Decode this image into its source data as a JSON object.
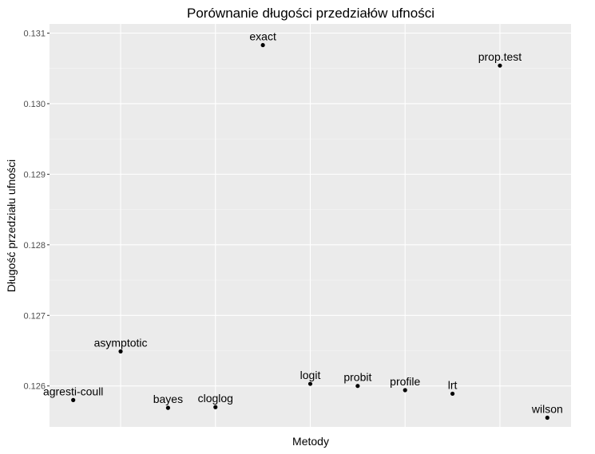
{
  "chart_data": {
    "type": "scatter",
    "title": "Porównanie długości przedziałów ufności",
    "xlabel": "Metody",
    "ylabel": "Długość przedziału ufności",
    "ylim": [
      0.12542,
      0.13113
    ],
    "yticks": [
      "0.126",
      "0.127",
      "0.128",
      "0.129",
      "0.130",
      "0.131"
    ],
    "grid": true,
    "points": [
      {
        "label": "agresti-coull",
        "x": 1,
        "y": 0.1258
      },
      {
        "label": "asymptotic",
        "x": 2,
        "y": 0.12649
      },
      {
        "label": "bayes",
        "x": 3,
        "y": 0.12569
      },
      {
        "label": "cloglog",
        "x": 4,
        "y": 0.1257
      },
      {
        "label": "exact",
        "x": 5,
        "y": 0.13083
      },
      {
        "label": "logit",
        "x": 6,
        "y": 0.12603
      },
      {
        "label": "probit",
        "x": 7,
        "y": 0.126
      },
      {
        "label": "profile",
        "x": 8,
        "y": 0.12594
      },
      {
        "label": "lrt",
        "x": 9,
        "y": 0.12589
      },
      {
        "label": "prop.test",
        "x": 10,
        "y": 0.13054
      },
      {
        "label": "wilson",
        "x": 11,
        "y": 0.12555
      }
    ]
  },
  "colors": {
    "panel_background": "#ebebeb",
    "grid_major": "#ffffff",
    "point": "#000000",
    "tick_label": "#4d4d4d"
  }
}
